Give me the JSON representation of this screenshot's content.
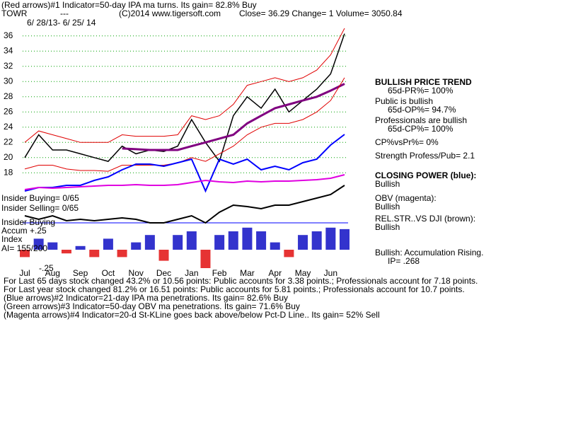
{
  "header": {
    "line1": "(Red arrows)#1 Indicator=50-day IPA ma turns.  Its gain= 82.8% Buy",
    "symbol": "TOWR",
    "dashes": "---",
    "copyright": "(C)2014 www.tigersoft.com",
    "quote": "Close=  36.29  Change= 1 Volume= 3050.84",
    "date_range": "6/ 28/13- 6/ 25/ 14"
  },
  "chart_data": {
    "type": "line",
    "categories": [
      "Jul",
      null,
      "Aug",
      null,
      "Sep",
      null,
      "Oct",
      null,
      "Nov",
      null,
      "Dec",
      null,
      "Jan",
      null,
      "Feb",
      null,
      "Mar",
      null,
      "Apr",
      null,
      "May",
      null,
      "Jun",
      null
    ],
    "ylim": [
      17,
      37
    ],
    "yticks": [
      18,
      20,
      22,
      24,
      26,
      28,
      30,
      32,
      34,
      36
    ],
    "grid": true,
    "grid_color": "#00a000",
    "series": [
      {
        "color": "#000000",
        "values": [
          20,
          23,
          21,
          21,
          20.5,
          20,
          19.5,
          21.5,
          20.5,
          21,
          20.8,
          21.5,
          25,
          22,
          19.5,
          25.5,
          28,
          26.5,
          29,
          26,
          27.5,
          29,
          31,
          36.29
        ]
      },
      {
        "color": "#800080",
        "values": [
          null,
          null,
          null,
          null,
          null,
          null,
          null,
          21.2,
          21.1,
          21,
          21,
          21,
          21.5,
          22,
          22.5,
          23,
          24.5,
          25.5,
          26.5,
          27,
          27.5,
          28,
          28.8,
          29.7
        ]
      },
      {
        "color": "#e00000",
        "values": [
          22,
          23.5,
          23,
          22.5,
          22,
          22,
          22,
          23,
          22.8,
          22.8,
          22.8,
          23,
          25.5,
          25,
          25.5,
          27,
          29.5,
          30,
          30.5,
          30,
          30.5,
          31.5,
          33.5,
          37
        ]
      },
      {
        "color": "#e00000",
        "values": [
          18.5,
          19,
          19,
          18.5,
          18.3,
          18.3,
          18.2,
          19,
          19,
          19,
          19,
          19.3,
          20,
          19.5,
          20.5,
          21.5,
          23,
          24,
          24.5,
          24.5,
          25,
          26,
          27.5,
          30.5
        ]
      }
    ],
    "indicators": [
      {
        "color": "#0000ff",
        "values": [
          110,
          115,
          115,
          118,
          118,
          125,
          130,
          140,
          148,
          148,
          145,
          150,
          155,
          110,
          155,
          148,
          155,
          140,
          145,
          140,
          150,
          155,
          175,
          190
        ]
      },
      {
        "color": "#e000e0",
        "values": [
          112,
          115,
          114,
          115,
          116,
          117,
          118,
          118,
          119,
          118,
          118,
          119,
          122,
          125,
          123,
          122,
          124,
          123,
          124,
          124,
          125,
          126,
          128,
          133
        ]
      },
      {
        "color": "#000000",
        "values": [
          75,
          70,
          75,
          68,
          70,
          68,
          70,
          72,
          70,
          65,
          65,
          70,
          75,
          65,
          80,
          90,
          88,
          85,
          90,
          90,
          95,
          100,
          105,
          118
        ]
      }
    ],
    "accum": {
      "values": [
        -0.1,
        0.15,
        0.1,
        -0.05,
        0.05,
        -0.1,
        0.15,
        -0.1,
        0.1,
        0.2,
        -0.15,
        0.2,
        0.25,
        -0.25,
        0.2,
        0.25,
        0.3,
        0.25,
        0.1,
        -0.1,
        0.2,
        0.25,
        0.3,
        0.28
      ]
    }
  },
  "side_notes": [
    "BULLISH PRICE TREND",
    "65d-PR%= 100%",
    "Public is bullish",
    "65d-OP%= 94.7%",
    "Professionals are bullish",
    "65d-CP%= 100%",
    "CP%vsPr%=  0%",
    "Strength Profess/Pub= 2.1",
    "CLOSING POWER (blue):",
    "Bullish",
    "OBV (magenta):",
    "Bullish",
    "REL.STR..VS DJI (brown):",
    "Bullish",
    "Bullish: Accumulation Rising.",
    "IP=  .268"
  ],
  "left_labels": [
    "Insider Buying= 0/65",
    "Insider Selling= 0/65",
    "Insider Buying",
    "Accum  +.25",
    "Index",
    "AI= 155/200",
    "-.25"
  ],
  "footer_lines": [
    "For Last 65 days stock changed  43.2% or  10.56 points:  Public accounts for  3.38 points.;  Professionals account for  7.18 points.",
    "For Last year stock changed  81.2% or  16.51 points:  Public accounts for  5.81 points.;  Professionals account for  10.7 points.",
    "(Blue arrows)#2 Indicator=21-day IPA ma penetrations.  Its gain= 82.6% Buy",
    "(Green arrows)#3 Indicator=50-day OBV ma penetrations.  Its gain= 71.6% Buy",
    "(Magenta arrows)#4 Indicator=20-d St-KLine goes back above/below Pct-D Line..  Its gain= 52% Sell"
  ]
}
